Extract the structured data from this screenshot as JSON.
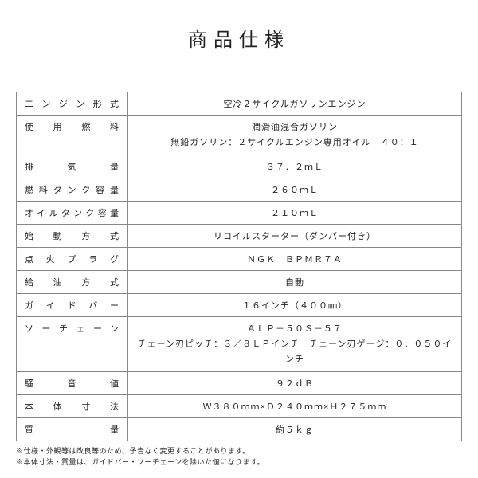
{
  "title": "商品仕様",
  "rows": [
    {
      "label": "エンジン形式",
      "value": "空冷２サイクルガソリンエンジン"
    },
    {
      "label": "使用燃料",
      "value": "潤滑油混合ガソリン\n無鉛ガソリン：２サイクルエンジン専用オイル　４０：１"
    },
    {
      "label": "排気量",
      "value": "３７．２ｍＬ"
    },
    {
      "label": "燃料タンク容量",
      "value": "２６０ｍＬ"
    },
    {
      "label": "オイルタンク容量",
      "value": "２１０ｍＬ"
    },
    {
      "label": "始動方式",
      "value": "リコイルスターター（ダンパー付き）"
    },
    {
      "label": "点火プラグ",
      "value": "ＮＧＫ　ＢＰＭＲ７Ａ"
    },
    {
      "label": "給油方式",
      "value": "自動"
    },
    {
      "label": "ガイドバー",
      "value": "１６インチ（４００㎜）"
    },
    {
      "label": "ソーチェーン",
      "value": "ＡＬＰ－５０Ｓ－５７\nチェーン刃ピッチ：３／８ＬＰインチ　チェーン刃ゲージ：０．０５０インチ"
    },
    {
      "label": "騒音値",
      "value": "９２ｄＢ"
    },
    {
      "label": "本体寸法",
      "value": "Ｗ３８０ｍｍ×Ｄ２４０ｍｍ×Ｈ２７５ｍｍ"
    },
    {
      "label": "質量",
      "value": "約５ｋｇ"
    }
  ],
  "notes": [
    "※仕様・外観等は改良等のため、予告なく変更することがあります。",
    "※本体寸法・質量は、ガイドバー・ソーチェーンを除いた値になります。"
  ]
}
